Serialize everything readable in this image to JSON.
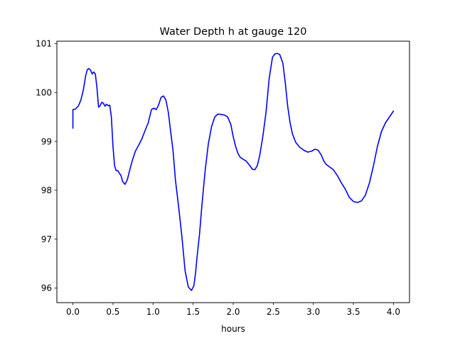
{
  "chart_data": {
    "type": "line",
    "title": "Water Depth h at gauge 120",
    "xlabel": "hours",
    "ylabel": "",
    "xlim": [
      -0.2,
      4.2
    ],
    "ylim": [
      95.7,
      101.05
    ],
    "xticks": [
      0.0,
      0.5,
      1.0,
      1.5,
      2.0,
      2.5,
      3.0,
      3.5,
      4.0
    ],
    "xtick_labels": [
      "0.0",
      "0.5",
      "1.0",
      "1.5",
      "2.0",
      "2.5",
      "3.0",
      "3.5",
      "4.0"
    ],
    "yticks": [
      96,
      97,
      98,
      99,
      100,
      101
    ],
    "ytick_labels": [
      "96",
      "97",
      "98",
      "99",
      "100",
      "101"
    ],
    "grid": false,
    "series": [
      {
        "color": "#0000ff",
        "x": [
          0.0,
          0.0,
          0.03,
          0.07,
          0.1,
          0.13,
          0.16,
          0.18,
          0.2,
          0.22,
          0.24,
          0.26,
          0.28,
          0.3,
          0.32,
          0.34,
          0.36,
          0.38,
          0.4,
          0.42,
          0.44,
          0.46,
          0.48,
          0.5,
          0.52,
          0.54,
          0.56,
          0.6,
          0.62,
          0.65,
          0.68,
          0.71,
          0.74,
          0.78,
          0.82,
          0.86,
          0.9,
          0.94,
          0.98,
          1.01,
          1.04,
          1.07,
          1.1,
          1.13,
          1.16,
          1.19,
          1.22,
          1.25,
          1.28,
          1.32,
          1.36,
          1.4,
          1.44,
          1.48,
          1.51,
          1.53,
          1.55,
          1.58,
          1.61,
          1.65,
          1.69,
          1.73,
          1.77,
          1.81,
          1.85,
          1.89,
          1.93,
          1.97,
          2.0,
          2.03,
          2.06,
          2.09,
          2.12,
          2.16,
          2.2,
          2.24,
          2.27,
          2.3,
          2.33,
          2.37,
          2.41,
          2.45,
          2.49,
          2.52,
          2.55,
          2.58,
          2.62,
          2.65,
          2.68,
          2.71,
          2.74,
          2.78,
          2.83,
          2.88,
          2.93,
          2.98,
          3.02,
          3.06,
          3.1,
          3.13,
          3.16,
          3.2,
          3.25,
          3.3,
          3.35,
          3.4,
          3.45,
          3.5,
          3.55,
          3.6,
          3.65,
          3.7,
          3.75,
          3.8,
          3.85,
          3.9,
          3.95,
          4.0
        ],
        "y": [
          99.27,
          99.65,
          99.66,
          99.73,
          99.85,
          100.05,
          100.35,
          100.47,
          100.49,
          100.46,
          100.38,
          100.42,
          100.38,
          100.1,
          99.7,
          99.73,
          99.8,
          99.78,
          99.72,
          99.76,
          99.73,
          99.74,
          99.5,
          98.9,
          98.5,
          98.4,
          98.4,
          98.3,
          98.18,
          98.12,
          98.22,
          98.42,
          98.6,
          98.8,
          98.92,
          99.05,
          99.22,
          99.38,
          99.65,
          99.68,
          99.65,
          99.75,
          99.9,
          99.93,
          99.85,
          99.6,
          99.2,
          98.8,
          98.2,
          97.65,
          97.05,
          96.35,
          96.02,
          95.95,
          96.05,
          96.3,
          96.65,
          97.1,
          97.7,
          98.4,
          98.95,
          99.3,
          99.5,
          99.56,
          99.55,
          99.54,
          99.5,
          99.35,
          99.1,
          98.9,
          98.75,
          98.67,
          98.64,
          98.6,
          98.52,
          98.43,
          98.42,
          98.5,
          98.7,
          99.1,
          99.6,
          100.3,
          100.72,
          100.79,
          100.8,
          100.78,
          100.6,
          100.2,
          99.72,
          99.38,
          99.15,
          98.98,
          98.88,
          98.82,
          98.78,
          98.8,
          98.84,
          98.82,
          98.72,
          98.6,
          98.53,
          98.48,
          98.42,
          98.3,
          98.15,
          98.02,
          97.85,
          97.77,
          97.75,
          97.78,
          97.9,
          98.15,
          98.5,
          98.9,
          99.2,
          99.38,
          99.5,
          99.62
        ]
      }
    ]
  }
}
